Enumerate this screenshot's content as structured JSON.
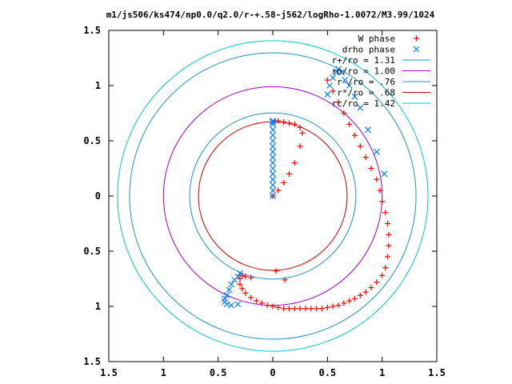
{
  "chart_data": {
    "type": "scatter",
    "title": "m1/js506/ks474/np0.0/q2.0/r-+.58-j562/logRho-1.0072/M3.99/1024",
    "xlabel": "",
    "ylabel": "",
    "xlim": [
      -1.5,
      1.5
    ],
    "ylim": [
      -1.5,
      1.5
    ],
    "x_tick_values": [
      -1.5,
      -1,
      -0.5,
      0,
      0.5,
      1,
      1.5
    ],
    "x_tick_labels": [
      "1.5",
      "1",
      "0.5",
      "0",
      "0.5",
      "1",
      "1.5"
    ],
    "y_tick_values": [
      1.5,
      1,
      0.5,
      0,
      -0.5,
      -1,
      -1.5
    ],
    "y_tick_labels": [
      "1.5",
      "1",
      "0.5",
      "0",
      "0.5",
      "1",
      "1.5"
    ],
    "grid": false,
    "legend_position": "top-right",
    "colors": {
      "w_phase": "#ff0000",
      "drho_phase": "#0080ff",
      "r_plus": "#1e90c8",
      "ro": "#a000c8",
      "r_minus": "#1e90c8",
      "r_star": "#c80000",
      "rc": "#00c8c8",
      "frame": "#000000"
    },
    "series": [
      {
        "name": "W phase",
        "kind": "points",
        "marker": "plus",
        "x": [
          0.0,
          0.05,
          0.1,
          0.15,
          0.2,
          0.25,
          0.27,
          0.25,
          0.2,
          0.15,
          0.1,
          0.05,
          0.02,
          0.5,
          0.55,
          0.6,
          0.65,
          0.7,
          0.75,
          0.8,
          0.85,
          0.9,
          0.95,
          0.98,
          1.0,
          1.03,
          1.05,
          1.06,
          1.06,
          1.05,
          1.03,
          1.0,
          0.95,
          0.9,
          0.85,
          0.8,
          0.75,
          0.7,
          0.65,
          0.6,
          0.55,
          0.5,
          0.45,
          0.4,
          0.35,
          0.3,
          0.25,
          0.2,
          0.15,
          0.1,
          0.05,
          0.0,
          -0.05,
          -0.1,
          -0.15,
          -0.2,
          -0.25,
          -0.28,
          -0.3,
          -0.3,
          -0.28,
          -0.25,
          -0.2,
          0.03,
          0.11
        ],
        "y": [
          0.0,
          0.05,
          0.12,
          0.2,
          0.3,
          0.45,
          0.57,
          0.62,
          0.65,
          0.66,
          0.67,
          0.68,
          0.68,
          1.05,
          0.95,
          0.85,
          0.75,
          0.65,
          0.55,
          0.45,
          0.35,
          0.25,
          0.15,
          0.05,
          -0.05,
          -0.15,
          -0.25,
          -0.35,
          -0.45,
          -0.55,
          -0.65,
          -0.72,
          -0.78,
          -0.83,
          -0.87,
          -0.9,
          -0.93,
          -0.95,
          -0.97,
          -0.99,
          -1.0,
          -1.01,
          -1.02,
          -1.02,
          -1.02,
          -1.02,
          -1.02,
          -1.02,
          -1.02,
          -1.02,
          -1.01,
          -1.0,
          -0.99,
          -0.97,
          -0.95,
          -0.92,
          -0.88,
          -0.84,
          -0.8,
          -0.75,
          -0.72,
          -0.73,
          -0.74,
          -0.68,
          -0.76
        ]
      },
      {
        "name": "drho phase",
        "kind": "points",
        "marker": "cross",
        "x": [
          0.0,
          0.0,
          0.0,
          0.0,
          0.0,
          0.0,
          0.0,
          0.0,
          0.0,
          0.0,
          0.0,
          0.0,
          0.0,
          0.0,
          0.0,
          0.0,
          0.0,
          0.5,
          0.52,
          0.55,
          0.58,
          0.6,
          0.63,
          0.66,
          0.7,
          0.75,
          0.8,
          0.87,
          0.95,
          1.02,
          -0.3,
          -0.32,
          -0.35,
          -0.38,
          -0.4,
          -0.42,
          -0.44,
          -0.44,
          -0.42,
          -0.38,
          -0.32
        ],
        "y": [
          0.0,
          0.05,
          0.1,
          0.15,
          0.2,
          0.25,
          0.3,
          0.35,
          0.4,
          0.45,
          0.5,
          0.55,
          0.6,
          0.65,
          0.68,
          0.68,
          0.67,
          0.92,
          1.0,
          1.07,
          1.12,
          1.15,
          1.12,
          1.05,
          1.0,
          0.9,
          0.8,
          0.6,
          0.4,
          0.2,
          -0.7,
          -0.73,
          -0.76,
          -0.8,
          -0.85,
          -0.9,
          -0.93,
          -0.96,
          -0.98,
          -0.99,
          -0.98
        ]
      },
      {
        "name": "r+/ro = 1.31",
        "kind": "circle",
        "radius": 1.31
      },
      {
        "name": "ro/ro = 1.00",
        "kind": "circle",
        "radius": 1.0
      },
      {
        "name": "r-/ro = .76",
        "kind": "circle",
        "radius": 0.76
      },
      {
        "name": "r*/ro = .68",
        "kind": "circle",
        "radius": 0.68
      },
      {
        "name": "rc/ro = 1.42",
        "kind": "circle",
        "radius": 1.42
      }
    ]
  }
}
